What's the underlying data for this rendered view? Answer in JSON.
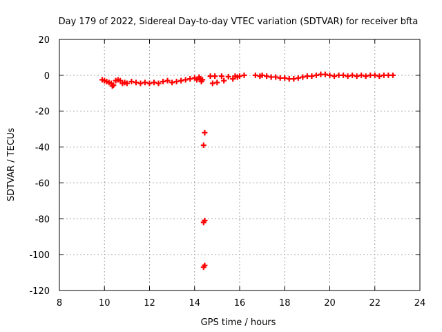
{
  "chart_data": {
    "type": "scatter",
    "title": "Day 179 of 2022, Sidereal Day-to-day VTEC variation (SDTVAR) for receiver bfta",
    "xlabel": "GPS time / hours",
    "ylabel": "SDTVAR / TECUs",
    "xlim": [
      8,
      24
    ],
    "ylim": [
      -120,
      20
    ],
    "xticks": [
      "8",
      "10",
      "12",
      "14",
      "16",
      "18",
      "20",
      "22",
      "24"
    ],
    "yticks": [
      "20",
      "0",
      "-20",
      "-40",
      "-60",
      "-80",
      "-100",
      "-120"
    ],
    "grid": true,
    "marker": "plus",
    "series": [
      {
        "name": "SDTVAR",
        "color": "#ff0000",
        "points": [
          [
            9.9,
            -2.5
          ],
          [
            10.0,
            -3.0
          ],
          [
            10.1,
            -3.5
          ],
          [
            10.2,
            -4.0
          ],
          [
            10.3,
            -4.5
          ],
          [
            10.35,
            -6.0
          ],
          [
            10.4,
            -5.5
          ],
          [
            10.5,
            -3.0
          ],
          [
            10.6,
            -2.5
          ],
          [
            10.7,
            -3.0
          ],
          [
            10.8,
            -4.5
          ],
          [
            10.9,
            -4.0
          ],
          [
            11.0,
            -4.5
          ],
          [
            11.2,
            -3.5
          ],
          [
            11.4,
            -4.0
          ],
          [
            11.6,
            -4.5
          ],
          [
            11.8,
            -4.0
          ],
          [
            12.0,
            -4.5
          ],
          [
            12.2,
            -4.0
          ],
          [
            12.4,
            -4.5
          ],
          [
            12.6,
            -3.5
          ],
          [
            12.8,
            -3.0
          ],
          [
            13.0,
            -4.0
          ],
          [
            13.2,
            -3.5
          ],
          [
            13.4,
            -3.0
          ],
          [
            13.6,
            -2.5
          ],
          [
            13.8,
            -2.0
          ],
          [
            14.0,
            -1.5
          ],
          [
            14.1,
            -2.5
          ],
          [
            14.2,
            -1.0
          ],
          [
            14.25,
            -2.0
          ],
          [
            14.3,
            -3.5
          ],
          [
            14.35,
            -2.5
          ],
          [
            14.45,
            -32.0
          ],
          [
            14.4,
            -39.0
          ],
          [
            14.4,
            -82.0
          ],
          [
            14.45,
            -81.0
          ],
          [
            14.4,
            -107.0
          ],
          [
            14.45,
            -106.0
          ],
          [
            14.7,
            -0.5
          ],
          [
            14.8,
            -4.5
          ],
          [
            14.9,
            -0.5
          ],
          [
            15.0,
            -4.0
          ],
          [
            15.2,
            -0.5
          ],
          [
            15.3,
            -3.0
          ],
          [
            15.5,
            -0.8
          ],
          [
            15.7,
            -2.0
          ],
          [
            15.8,
            -0.5
          ],
          [
            15.9,
            -1.0
          ],
          [
            16.0,
            -0.5
          ],
          [
            16.2,
            0.0
          ],
          [
            16.7,
            0.0
          ],
          [
            16.9,
            -0.5
          ],
          [
            17.0,
            0.0
          ],
          [
            17.2,
            -0.5
          ],
          [
            17.4,
            -1.0
          ],
          [
            17.6,
            -1.0
          ],
          [
            17.8,
            -1.5
          ],
          [
            18.0,
            -1.5
          ],
          [
            18.2,
            -2.0
          ],
          [
            18.4,
            -2.0
          ],
          [
            18.6,
            -1.5
          ],
          [
            18.8,
            -1.0
          ],
          [
            19.0,
            -0.5
          ],
          [
            19.2,
            -0.5
          ],
          [
            19.4,
            0.0
          ],
          [
            19.6,
            0.5
          ],
          [
            19.8,
            0.5
          ],
          [
            20.0,
            0.0
          ],
          [
            20.2,
            -0.5
          ],
          [
            20.4,
            0.0
          ],
          [
            20.6,
            0.0
          ],
          [
            20.8,
            -0.5
          ],
          [
            21.0,
            0.0
          ],
          [
            21.2,
            -0.5
          ],
          [
            21.4,
            0.0
          ],
          [
            21.6,
            -0.5
          ],
          [
            21.8,
            0.0
          ],
          [
            22.0,
            0.0
          ],
          [
            22.2,
            -0.5
          ],
          [
            22.4,
            0.0
          ],
          [
            22.6,
            0.0
          ],
          [
            22.8,
            0.0
          ]
        ]
      }
    ]
  }
}
